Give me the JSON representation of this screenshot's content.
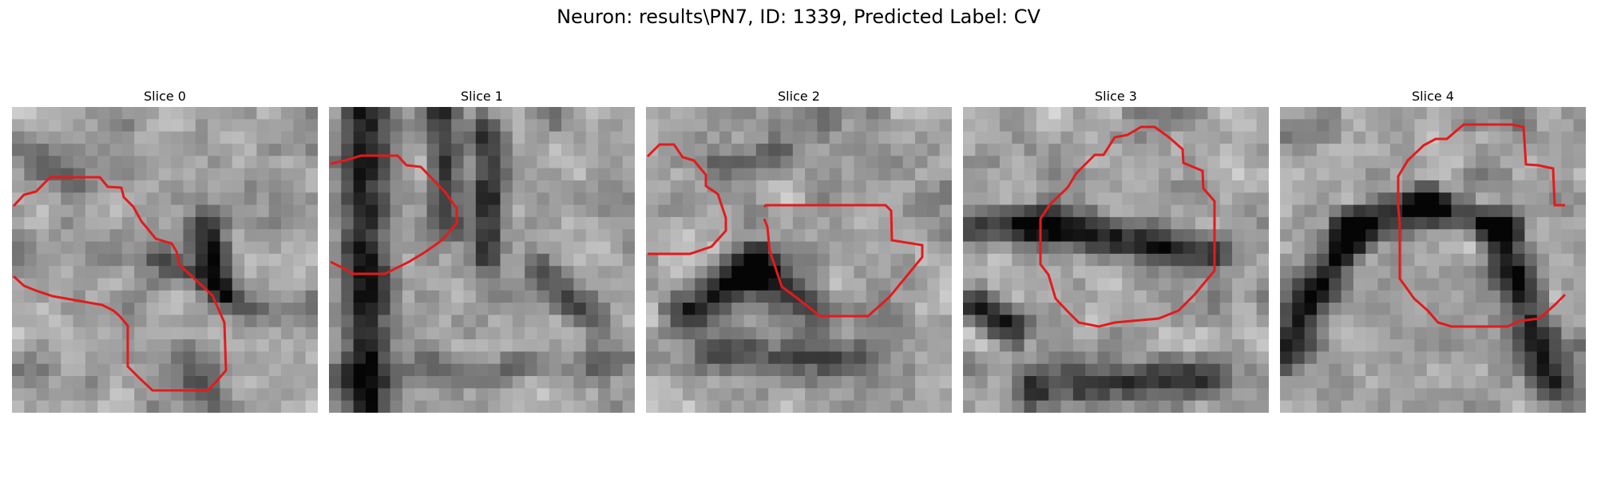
{
  "figure": {
    "title": "Neuron: results\\PN7, ID: 1339, Predicted Label: CV",
    "contour_color": "#e41a1c",
    "colormap": "grayscale"
  },
  "slices": [
    {
      "title": "Slice 0"
    },
    {
      "title": "Slice 1"
    },
    {
      "title": "Slice 2"
    },
    {
      "title": "Slice 3"
    },
    {
      "title": "Slice 4"
    }
  ]
}
